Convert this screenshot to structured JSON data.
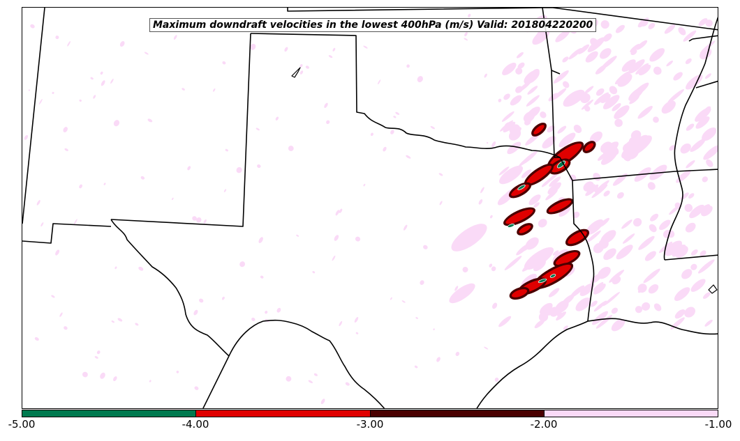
{
  "title": "Maximum downdraft velocities in the lowest 400hPa (m/s) Valid: 201804220200",
  "colorbar": {
    "ticks": [
      "-5.00",
      "-4.00",
      "-3.00",
      "-2.00",
      "-1.00"
    ],
    "segments": [
      {
        "from": -5.0,
        "to": -4.0,
        "color": "#007a4f"
      },
      {
        "from": -4.0,
        "to": -3.0,
        "color": "#e00000"
      },
      {
        "from": -3.0,
        "to": -2.0,
        "color": "#4a0000"
      },
      {
        "from": -2.0,
        "to": -1.0,
        "color": "#fadaf7"
      }
    ]
  },
  "colors": {
    "light": "#fadaf7",
    "dark": "#4a0000",
    "red": "#e00000",
    "green": "#007a4f",
    "boundary": "#000000"
  }
}
